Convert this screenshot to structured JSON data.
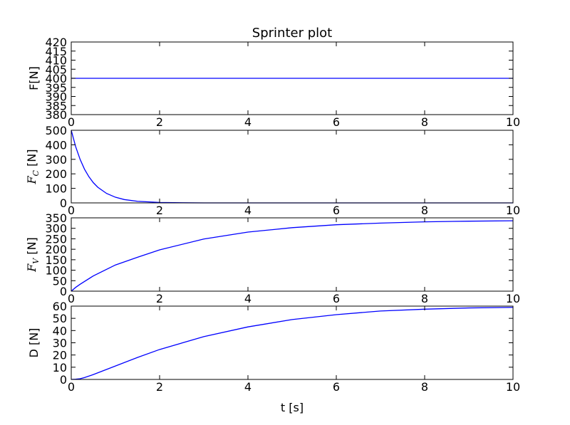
{
  "figure_title": "Sprinter plot",
  "xlabel": "t [s]",
  "colors": {
    "line": "#0000ff",
    "axes": "#000000",
    "background": "#ffffff"
  },
  "chart_data": [
    {
      "type": "line",
      "title": "Sprinter plot",
      "ylabel": "F[N]",
      "ylabel_parts": {
        "main": "F[N]",
        "sub": ""
      },
      "xlim": [
        0,
        10
      ],
      "ylim": [
        380,
        420
      ],
      "xticks": [
        0,
        2,
        4,
        6,
        8,
        10
      ],
      "yticks": [
        380,
        385,
        390,
        395,
        400,
        405,
        410,
        415,
        420
      ],
      "grid": false,
      "series": [
        {
          "x": [
            0,
            10
          ],
          "y": [
            400,
            400
          ]
        }
      ]
    },
    {
      "type": "line",
      "ylabel": "F_C [N]",
      "ylabel_parts": {
        "main": "F",
        "sub": "C",
        "unit": "[N]"
      },
      "xlim": [
        0,
        10
      ],
      "ylim": [
        0,
        500
      ],
      "xticks": [
        0,
        2,
        4,
        6,
        8,
        10
      ],
      "yticks": [
        0,
        100,
        200,
        300,
        400,
        500
      ],
      "grid": false,
      "series": [
        {
          "x": [
            0,
            0.1,
            0.2,
            0.3,
            0.4,
            0.5,
            0.6,
            0.8,
            1.0,
            1.2,
            1.5,
            2.0,
            2.5,
            3,
            4,
            5,
            6,
            7,
            8,
            9,
            10
          ],
          "y": [
            500,
            387,
            300,
            232,
            180,
            139,
            108,
            65,
            39,
            23,
            11,
            3,
            1,
            0,
            0,
            0,
            0,
            0,
            0,
            0,
            0
          ]
        }
      ]
    },
    {
      "type": "line",
      "ylabel": "F_V [N]",
      "ylabel_parts": {
        "main": "F",
        "sub": "V",
        "unit": "[N]"
      },
      "xlim": [
        0,
        10
      ],
      "ylim": [
        0,
        350
      ],
      "xticks": [
        0,
        2,
        4,
        6,
        8,
        10
      ],
      "yticks": [
        0,
        50,
        100,
        150,
        200,
        250,
        300,
        350
      ],
      "grid": false,
      "series": [
        {
          "x": [
            0,
            0.1,
            0.2,
            0.5,
            1,
            1.5,
            2,
            3,
            4,
            5,
            6,
            7,
            8,
            9,
            10
          ],
          "y": [
            0,
            18,
            33,
            73,
            125,
            162,
            197,
            249,
            282,
            303,
            317,
            325,
            331,
            334,
            336
          ]
        }
      ]
    },
    {
      "type": "line",
      "ylabel": "D [N]",
      "ylabel_parts": {
        "main": "D [N]",
        "sub": ""
      },
      "xlim": [
        0,
        10
      ],
      "ylim": [
        0,
        60
      ],
      "xticks": [
        0,
        2,
        4,
        6,
        8,
        10
      ],
      "yticks": [
        0,
        10,
        20,
        30,
        40,
        50,
        60
      ],
      "grid": false,
      "series": [
        {
          "x": [
            0,
            0.1,
            0.2,
            0.3,
            0.5,
            1,
            1.5,
            2,
            3,
            4,
            5,
            6,
            7,
            8,
            9,
            10
          ],
          "y": [
            0,
            0.2,
            0.6,
            1.5,
            4,
            11,
            18,
            24.5,
            35,
            43,
            49,
            53,
            56,
            57.5,
            58.5,
            59
          ]
        }
      ]
    }
  ]
}
